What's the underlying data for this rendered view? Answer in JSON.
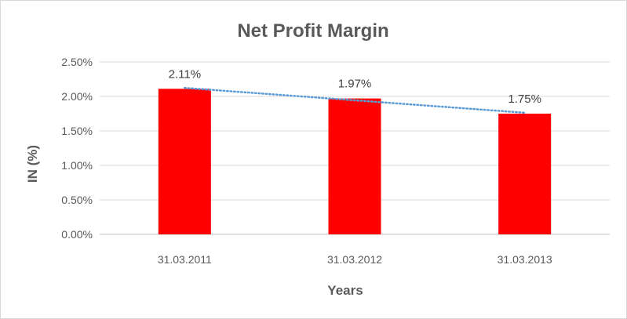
{
  "chart_data": {
    "type": "bar",
    "title": "Net Profit Margin",
    "xlabel": "Years",
    "ylabel": "IN (%)",
    "categories": [
      "31.03.2011",
      "31.03.2012",
      "31.03.2013"
    ],
    "values": [
      2.11,
      1.97,
      1.75
    ],
    "data_labels": [
      "2.11%",
      "1.97%",
      "1.75%"
    ],
    "ylim": [
      0,
      2.5
    ],
    "yticks": [
      0,
      0.5,
      1.0,
      1.5,
      2.0,
      2.5
    ],
    "ytick_labels": [
      "0.00%",
      "0.50%",
      "1.00%",
      "1.50%",
      "2.00%",
      "2.50%"
    ],
    "grid": true,
    "trendline": {
      "type": "linear",
      "style": "dotted",
      "color": "#5b9bd5"
    },
    "bar_color": "#ff0000"
  }
}
